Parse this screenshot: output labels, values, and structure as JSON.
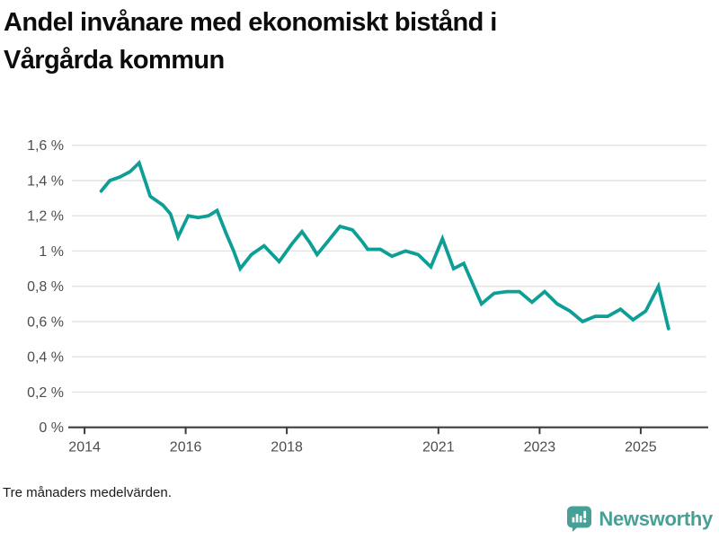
{
  "header": {
    "title_lines": [
      "Andel invånare med ekonomiskt bistånd i",
      "Vårgårda kommun"
    ]
  },
  "footer": {
    "note": "Tre månaders medelvärden.",
    "brand": {
      "name": "Newsworthy",
      "color": "#47a096",
      "icon": "bar-chart-speech-bubble-icon"
    }
  },
  "chart_data": {
    "type": "line",
    "title": "Andel invånare med ekonomiskt bistånd i Vårgårda kommun",
    "note": "Tre månaders medelvärden.",
    "unit": "%",
    "decimal_separator": ",",
    "grid": true,
    "legend": "none",
    "xlim": [
      2013.75,
      2026.3
    ],
    "ylim": [
      0,
      1.6
    ],
    "line_color": "#0d9e96",
    "grid_color": "#e2e2e2",
    "axis_color": "#3c3c3c",
    "y_ticks": [
      {
        "value": 0,
        "label": "0 %"
      },
      {
        "value": 0.2,
        "label": "0,2 %"
      },
      {
        "value": 0.4,
        "label": "0,4 %"
      },
      {
        "value": 0.6,
        "label": "0,6 %"
      },
      {
        "value": 0.8,
        "label": "0,8 %"
      },
      {
        "value": 1.0,
        "label": "1 %"
      },
      {
        "value": 1.2,
        "label": "1,2 %"
      },
      {
        "value": 1.4,
        "label": "1,4 %"
      },
      {
        "value": 1.6,
        "label": "1,6 %"
      }
    ],
    "x_ticks": [
      {
        "value": 2014,
        "label": "2014"
      },
      {
        "value": 2016,
        "label": "2016"
      },
      {
        "value": 2018,
        "label": "2018"
      },
      {
        "value": 2021,
        "label": "2021"
      },
      {
        "value": 2023,
        "label": "2023"
      },
      {
        "value": 2025,
        "label": "2025"
      }
    ],
    "series": [
      {
        "name": "Andel invånare med ekonomiskt bistånd",
        "x": [
          2014.33,
          2014.5,
          2014.7,
          2014.9,
          2015.08,
          2015.3,
          2015.55,
          2015.7,
          2015.85,
          2016.05,
          2016.25,
          2016.45,
          2016.62,
          2016.8,
          2016.95,
          2017.08,
          2017.3,
          2017.55,
          2017.85,
          2018.1,
          2018.3,
          2018.45,
          2018.6,
          2018.8,
          2019.05,
          2019.3,
          2019.5,
          2019.6,
          2019.85,
          2020.08,
          2020.35,
          2020.6,
          2020.85,
          2021.08,
          2021.3,
          2021.5,
          2021.85,
          2022.1,
          2022.35,
          2022.6,
          2022.85,
          2023.1,
          2023.35,
          2023.6,
          2023.85,
          2024.1,
          2024.35,
          2024.6,
          2024.85,
          2025.1,
          2025.35,
          2025.55
        ],
        "values": [
          1.34,
          1.4,
          1.42,
          1.45,
          1.5,
          1.31,
          1.26,
          1.21,
          1.08,
          1.2,
          1.19,
          1.2,
          1.23,
          1.1,
          1.0,
          0.9,
          0.98,
          1.03,
          0.94,
          1.04,
          1.11,
          1.05,
          0.98,
          1.05,
          1.14,
          1.12,
          1.05,
          1.01,
          1.01,
          0.97,
          1.0,
          0.98,
          0.91,
          1.07,
          0.9,
          0.93,
          0.7,
          0.76,
          0.77,
          0.77,
          0.71,
          0.77,
          0.7,
          0.66,
          0.6,
          0.63,
          0.63,
          0.67,
          0.61,
          0.66,
          0.8,
          0.56
        ]
      }
    ]
  }
}
